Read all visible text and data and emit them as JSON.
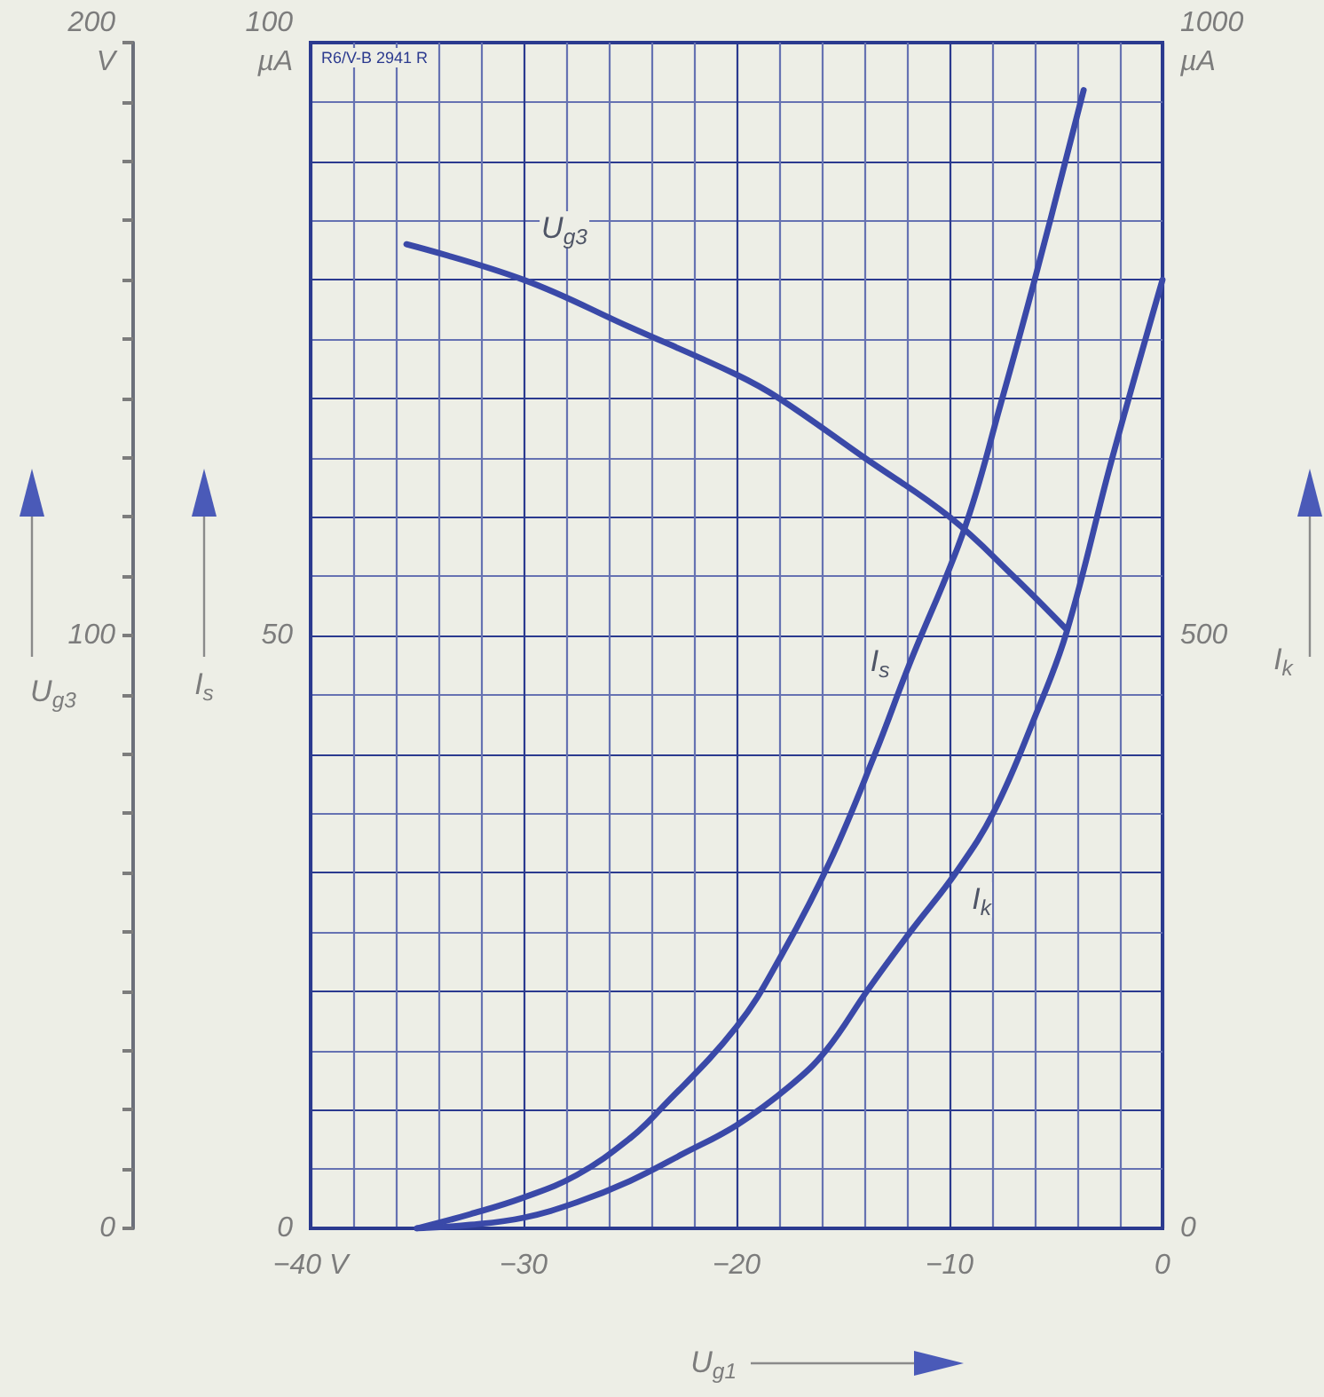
{
  "chart_data": {
    "type": "line",
    "xlabel": "U$_{g1}$",
    "ylabel": "I$_{s}$",
    "y2label": "I$_{k}$",
    "y3label": "U$_{g3}$",
    "xlim": [
      -40,
      0
    ],
    "xticks": [
      {
        "value": -40,
        "label": "−40 V"
      },
      {
        "value": -38,
        "label": null
      },
      {
        "value": -36,
        "label": null
      },
      {
        "value": -34,
        "label": null
      },
      {
        "value": -32,
        "label": null
      },
      {
        "value": -30,
        "label": "−30"
      },
      {
        "value": -28,
        "label": null
      },
      {
        "value": -26,
        "label": null
      },
      {
        "value": -24,
        "label": null
      },
      {
        "value": -22,
        "label": null
      },
      {
        "value": -20,
        "label": "−20"
      },
      {
        "value": -18,
        "label": null
      },
      {
        "value": -16,
        "label": null
      },
      {
        "value": -14,
        "label": null
      },
      {
        "value": -12,
        "label": null
      },
      {
        "value": -10,
        "label": "−10"
      },
      {
        "value": -8,
        "label": null
      },
      {
        "value": -6,
        "label": null
      },
      {
        "value": -4,
        "label": null
      },
      {
        "value": -2,
        "label": null
      },
      0
    ],
    "ylim": [
      0,
      100
    ],
    "yticks": [
      0,
      {
        "value": 5,
        "label": null
      },
      {
        "value": 10,
        "label": null
      },
      {
        "value": 15,
        "label": null
      },
      {
        "value": 20,
        "label": null
      },
      {
        "value": 25,
        "label": null
      },
      {
        "value": 30,
        "label": null
      },
      {
        "value": 35,
        "label": null
      },
      {
        "value": 40,
        "label": null
      },
      {
        "value": 45,
        "label": null
      },
      50,
      {
        "value": 55,
        "label": null
      },
      {
        "value": 60,
        "label": null
      },
      {
        "value": 65,
        "label": null
      },
      {
        "value": 70,
        "label": null
      },
      {
        "value": 75,
        "label": null
      },
      {
        "value": 80,
        "label": null
      },
      {
        "value": 85,
        "label": null
      },
      {
        "value": 90,
        "label": null
      },
      {
        "value": 95,
        "label": null
      },
      {
        "value": 100,
        "label": "100\nµA"
      }
    ],
    "y2lim": [
      0,
      1000
    ],
    "y2ticks": [
      0,
      500,
      {
        "value": 1000,
        "label": "1000\nµA"
      }
    ],
    "y3lim": [
      0,
      200
    ],
    "y3ticks": [
      0,
      {
        "value": 10,
        "label": null
      },
      {
        "value": 20,
        "label": null
      },
      {
        "value": 30,
        "label": null
      },
      {
        "value": 40,
        "label": null
      },
      {
        "value": 50,
        "label": null
      },
      {
        "value": 60,
        "label": null
      },
      {
        "value": 70,
        "label": null
      },
      {
        "value": 80,
        "label": null
      },
      {
        "value": 90,
        "label": null
      },
      100,
      {
        "value": 110,
        "label": null
      },
      {
        "value": 120,
        "label": null
      },
      {
        "value": 130,
        "label": null
      },
      {
        "value": 140,
        "label": null
      },
      {
        "value": 150,
        "label": null
      },
      {
        "value": 160,
        "label": null
      },
      {
        "value": 170,
        "label": null
      },
      {
        "value": 180,
        "label": null
      },
      {
        "value": 190,
        "label": null
      },
      {
        "value": 200,
        "label": "200\nV"
      }
    ],
    "grid": true,
    "marker": "none",
    "line_style": "solid",
    "annotations": [
      "R6/V-B 2941 R"
    ],
    "series": [
      {
        "name": "U$_{g3}$",
        "axis": "y3",
        "color": "#3a49a8",
        "x": [
          -35.5,
          -30,
          -25,
          -20,
          -18,
          -14,
          -10,
          -7,
          -4.5
        ],
        "values": [
          166,
          160,
          152,
          144,
          140,
          130,
          120,
          110,
          101
        ]
      },
      {
        "name": "I$_{s}$",
        "color": "#3a49a8",
        "x": [
          -35,
          -32.5,
          -30,
          -27.5,
          -25,
          -23.6,
          -20,
          -17.9,
          -15.6,
          -13.5,
          -11.9,
          -9.3,
          -7.6,
          -6,
          -3.7
        ],
        "values": [
          0,
          1.2,
          2.6,
          4.5,
          7.6,
          10,
          17,
          23,
          31,
          40,
          47.5,
          59,
          69.5,
          80,
          96
        ]
      },
      {
        "name": "I$_{k}$",
        "axis": "y2",
        "color": "#3a49a8",
        "x": [
          -35,
          -32.5,
          -30,
          -27.5,
          -25,
          -22.5,
          -20,
          -17.5,
          -15.8,
          -13.8,
          -11.8,
          -9.7,
          -7.9,
          -6,
          -4.5,
          -2.4,
          0
        ],
        "values": [
          0,
          3,
          9,
          22,
          40,
          63,
          87,
          120,
          150,
          202,
          251,
          300,
          352,
          431,
          503,
          647,
          800
        ]
      }
    ]
  }
}
